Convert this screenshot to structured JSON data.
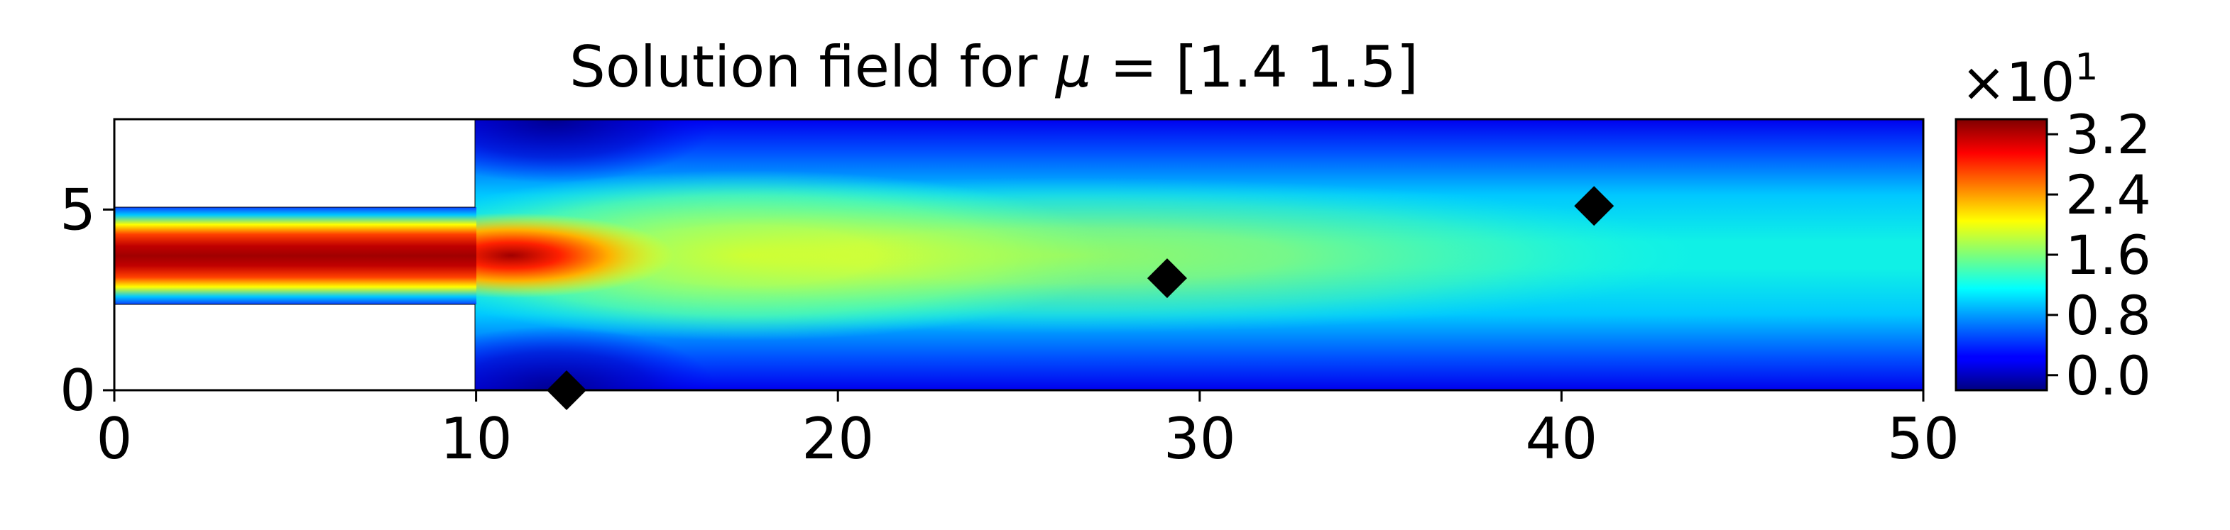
{
  "chart_data": {
    "type": "heatmap",
    "title_prefix": "Solution field for ",
    "title_mu": "μ",
    "title_suffix": " = [1.4 1.5]",
    "colormap": "jet",
    "xlim": [
      0,
      50
    ],
    "ylim": [
      0,
      7.5
    ],
    "x_ticks": [
      0,
      10,
      20,
      30,
      40,
      50
    ],
    "y_ticks": [
      0,
      5
    ],
    "x_tick_labels": [
      "0",
      "10",
      "20",
      "30",
      "40",
      "50"
    ],
    "y_tick_labels": [
      "0",
      "5"
    ],
    "domain": {
      "inlet_channel": {
        "x": [
          0,
          10
        ],
        "y": [
          2.4,
          5.1
        ]
      },
      "expansion": {
        "x": [
          10,
          50
        ],
        "y": [
          0,
          7.5
        ]
      }
    },
    "markers": [
      {
        "x": 12.5,
        "y": 0.0
      },
      {
        "x": 29.1,
        "y": 3.1
      },
      {
        "x": 40.9,
        "y": 5.1
      }
    ],
    "colorbar": {
      "min": -0.2,
      "max": 3.4,
      "ticks": [
        0.0,
        0.8,
        1.6,
        2.4,
        3.2
      ],
      "tick_labels": [
        "0.0",
        "0.8",
        "1.6",
        "2.4",
        "3.2"
      ],
      "multiplier_base": "×10",
      "multiplier_exp": "1"
    }
  }
}
